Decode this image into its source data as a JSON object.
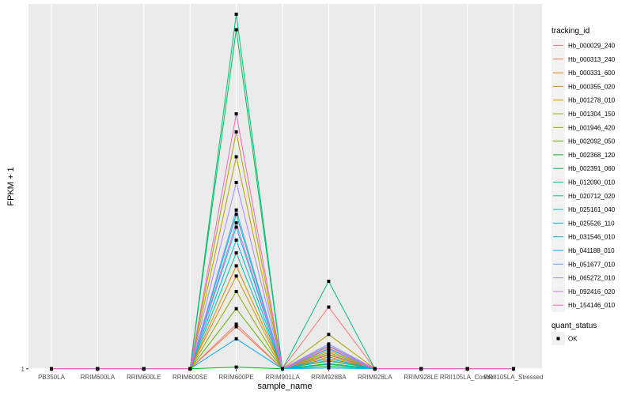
{
  "chart_data": {
    "type": "line",
    "xlabel": "sample_name",
    "ylabel": "FPKM + 1",
    "y_ticks": [
      1
    ],
    "y_tick_labels": [
      "1"
    ],
    "ylim": [
      0.98,
      43.5
    ],
    "grid": true,
    "legend_placement": "right",
    "categories": [
      "PB350LA",
      "RRIM600LA",
      "RRIM600LE",
      "RRIM600SE",
      "RRIM600PE",
      "RRIM901LA",
      "RRIM928BA",
      "RRIM928LA",
      "RRIM928LE",
      "RRII105LA_Control",
      "RRII105LA_Stressed"
    ],
    "series": [
      {
        "name": "Hb_000029_240",
        "color": "#F8766D",
        "values": [
          1,
          1,
          1,
          1,
          6.2,
          1,
          8.2,
          1,
          1,
          1,
          1
        ]
      },
      {
        "name": "Hb_000313_240",
        "color": "#EF7F49",
        "values": [
          1,
          1,
          1,
          1,
          5.9,
          1,
          3.6,
          1,
          1,
          1,
          1
        ]
      },
      {
        "name": "Hb_000331_600",
        "color": "#E38900",
        "values": [
          1,
          1,
          1,
          1,
          13.0,
          1,
          2.4,
          1,
          1,
          1,
          1
        ]
      },
      {
        "name": "Hb_000355_020",
        "color": "#D39200",
        "values": [
          1,
          1,
          1,
          1,
          11.8,
          1,
          2.0,
          1,
          1,
          1,
          1
        ]
      },
      {
        "name": "Hb_001278_010",
        "color": "#C09B00",
        "values": [
          1,
          1,
          1,
          1,
          25.7,
          1,
          3.1,
          1,
          1,
          1,
          1
        ]
      },
      {
        "name": "Hb_001304_150",
        "color": "#A9A400",
        "values": [
          1,
          1,
          1,
          1,
          28.6,
          1,
          5.0,
          1,
          1,
          1,
          1
        ]
      },
      {
        "name": "Hb_001946_420",
        "color": "#8CAB00",
        "values": [
          1,
          1,
          1,
          1,
          10.0,
          1,
          2.9,
          1,
          1,
          1,
          1
        ]
      },
      {
        "name": "Hb_002092_050",
        "color": "#5DB100",
        "values": [
          1,
          1,
          1,
          1,
          8.0,
          1,
          2.6,
          1,
          1,
          1,
          1
        ]
      },
      {
        "name": "Hb_002368_120",
        "color": "#00B81F",
        "values": [
          1,
          1,
          1,
          1,
          1.2,
          1,
          1.6,
          1,
          1,
          1,
          1
        ]
      },
      {
        "name": "Hb_002391_060",
        "color": "#00BC59",
        "values": [
          1,
          1,
          1,
          1,
          40.5,
          1,
          1.3,
          1,
          1,
          1,
          1
        ]
      },
      {
        "name": "Hb_012090_010",
        "color": "#00BE7D",
        "values": [
          1,
          1,
          1,
          1,
          42.3,
          1,
          11.2,
          1,
          1,
          1,
          1
        ]
      },
      {
        "name": "Hb_020712_020",
        "color": "#00BF9C",
        "values": [
          1,
          1,
          1,
          1,
          14.5,
          1,
          1.9,
          1,
          1,
          1,
          1
        ]
      },
      {
        "name": "Hb_025161_040",
        "color": "#00BFB7",
        "values": [
          1,
          1,
          1,
          1,
          19.0,
          1,
          1.5,
          1,
          1,
          1,
          1
        ]
      },
      {
        "name": "Hb_025526_110",
        "color": "#00BBCE",
        "values": [
          1,
          1,
          1,
          1,
          17.5,
          1,
          3.3,
          1,
          1,
          1,
          1
        ]
      },
      {
        "name": "Hb_031546_010",
        "color": "#00B3E2",
        "values": [
          1,
          1,
          1,
          1,
          16.0,
          1,
          1.1,
          1,
          1,
          1,
          1
        ]
      },
      {
        "name": "Hb_041188_010",
        "color": "#00A7F2",
        "values": [
          1,
          1,
          1,
          1,
          4.5,
          1,
          2.2,
          1,
          1,
          1,
          1
        ]
      },
      {
        "name": "Hb_051677_010",
        "color": "#619CFF",
        "values": [
          1,
          1,
          1,
          1,
          19.5,
          1,
          3.7,
          1,
          1,
          1,
          1
        ]
      },
      {
        "name": "Hb_065272_010",
        "color": "#A58AFF",
        "values": [
          1,
          1,
          1,
          1,
          22.7,
          1,
          3.9,
          1,
          1,
          1,
          1
        ]
      },
      {
        "name": "Hb_092416_020",
        "color": "#E76BF3",
        "values": [
          1,
          1,
          1,
          1,
          18.0,
          1,
          3.4,
          1,
          1,
          1,
          1
        ]
      },
      {
        "name": "Hb_154146_010",
        "color": "#FF62BC",
        "values": [
          1,
          1,
          1,
          1,
          30.7,
          1,
          2.7,
          1,
          1,
          1,
          1
        ]
      }
    ],
    "point_color": "#000000",
    "panel_background": "#EBEBEB",
    "grid_color": "#FFFFFF"
  },
  "legend": {
    "tracking_title": "tracking_id",
    "status_title": "quant_status",
    "status_label": "OK"
  }
}
